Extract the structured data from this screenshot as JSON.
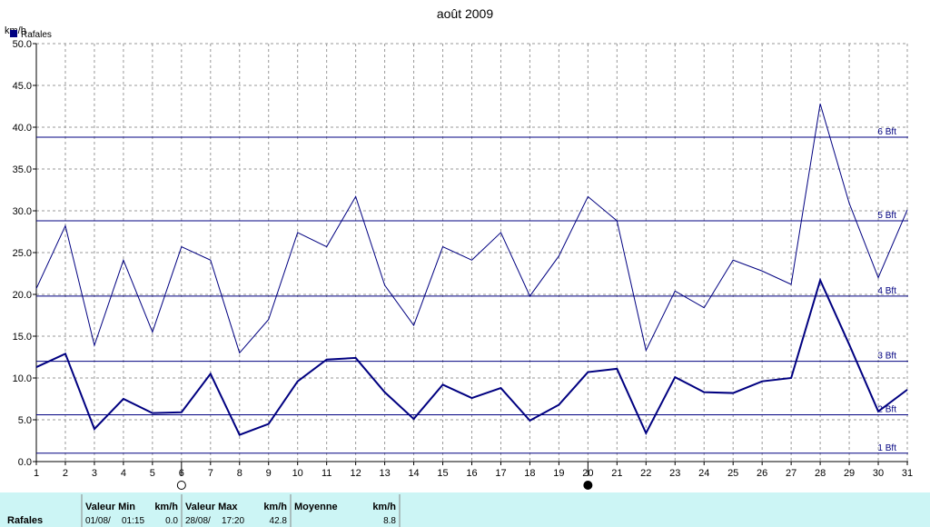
{
  "chart_data": {
    "type": "line",
    "title": "août 2009",
    "y_label": "km/h",
    "x": [
      1,
      2,
      3,
      4,
      5,
      6,
      7,
      8,
      9,
      10,
      11,
      12,
      13,
      14,
      15,
      16,
      17,
      18,
      19,
      20,
      21,
      22,
      23,
      24,
      25,
      26,
      27,
      28,
      29,
      30,
      31
    ],
    "series": [
      {
        "name": "Rafales",
        "color": "#000080",
        "values": [
          11.3,
          12.9,
          3.9,
          7.5,
          5.8,
          5.9,
          10.5,
          3.2,
          4.5,
          9.6,
          12.2,
          12.4,
          8.3,
          5.1,
          9.2,
          7.6,
          8.8,
          4.9,
          6.8,
          10.7,
          11.1,
          3.4,
          10.1,
          8.3,
          8.2,
          9.6,
          10.0,
          21.7,
          14.0,
          6.0,
          8.6
        ]
      },
      {
        "color": "#000080",
        "values": [
          20.7,
          28.2,
          13.9,
          24.1,
          15.5,
          25.7,
          24.1,
          13.0,
          17.0,
          27.4,
          25.7,
          31.7,
          21.1,
          16.3,
          25.7,
          24.1,
          27.4,
          19.8,
          24.6,
          31.7,
          28.8,
          13.3,
          20.4,
          18.4,
          24.1,
          22.8,
          21.2,
          42.8,
          30.9,
          22.0,
          30.1
        ]
      }
    ],
    "xlim": [
      1,
      31
    ],
    "xticks": [
      1,
      2,
      3,
      4,
      5,
      6,
      7,
      8,
      9,
      10,
      11,
      12,
      13,
      14,
      15,
      16,
      17,
      18,
      19,
      20,
      21,
      22,
      23,
      24,
      25,
      26,
      27,
      28,
      29,
      30,
      31
    ],
    "ylim": [
      0,
      50
    ],
    "yticks": [
      {
        "value": 0,
        "label": "0.0"
      },
      {
        "value": 5,
        "label": "5.0"
      },
      {
        "value": 10,
        "label": "10.0"
      },
      {
        "value": 15,
        "label": "15.0"
      },
      {
        "value": 20,
        "label": "20.0"
      },
      {
        "value": 25,
        "label": "25.0"
      },
      {
        "value": 30,
        "label": "30.0"
      },
      {
        "value": 35,
        "label": "35.0"
      },
      {
        "value": 40,
        "label": "40.0"
      },
      {
        "value": 45,
        "label": "45.0"
      },
      {
        "value": 50,
        "label": "50.0"
      }
    ],
    "grid": true,
    "beaufort": [
      {
        "label": "1 Bft",
        "value": 1
      },
      {
        "label": "2 Bft",
        "value": 5.6
      },
      {
        "label": "3 Bft",
        "value": 12
      },
      {
        "label": "4 Bft",
        "value": 19.8
      },
      {
        "label": "5 Bft",
        "value": 28.8
      },
      {
        "label": "6 Bft",
        "value": 38.8
      }
    ],
    "moon_phases": {
      "full": 6,
      "new": 20
    }
  },
  "table": {
    "row_label": "Rafales",
    "columns": [
      {
        "header": "Valeur Min",
        "unit": "km/h",
        "date": "01/08/",
        "time": "01:15",
        "value": "0.0"
      },
      {
        "header": "Valeur Max",
        "unit": "km/h",
        "date": "28/08/",
        "time": "17:20",
        "value": "42.8"
      },
      {
        "header": "Moyenne",
        "unit": "km/h",
        "value": "8.8"
      }
    ]
  }
}
